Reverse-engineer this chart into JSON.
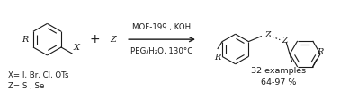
{
  "bg_color": "#ffffff",
  "fig_width": 3.78,
  "fig_height": 1.11,
  "dpi": 100,
  "reagent_text": "MOF-199 , KOH",
  "condition_text": "PEG/H₂O, 130°C",
  "label_x": "X= I, Br, Cl, OTs",
  "label_z": "Z= S , Se",
  "result_line1": "32 examples",
  "result_line2": "64-97 %",
  "font_size_main": 7.0,
  "font_size_labels": 6.2,
  "font_size_result": 6.8,
  "line_color": "#1a1a1a",
  "text_color": "#1a1a1a"
}
